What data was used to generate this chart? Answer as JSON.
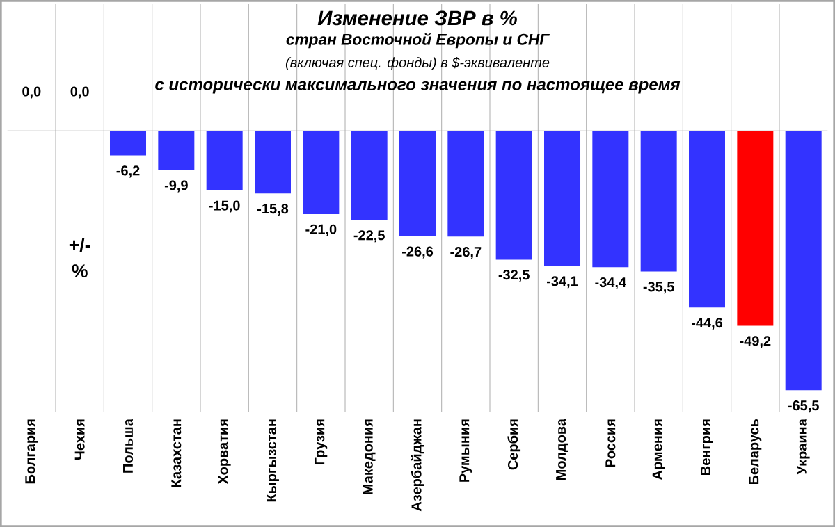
{
  "chart_data": {
    "type": "bar",
    "title": "Изменение ЗВР в %",
    "subtitle": "стран Восточной Европы и СНГ",
    "annotations": [
      "(включая спец. фонды) в $-эквиваленте",
      "с исторически  максимального  значения  по настоящее  время"
    ],
    "ylabel": "+/- %",
    "categories": [
      "Болгария",
      "Чехия",
      "Польша",
      "Казахстан",
      "Хорватия",
      "Кыргызстан",
      "Грузия",
      "Македония",
      "Азербайджан",
      "Румыния",
      "Сербия",
      "Молдова",
      "Россия",
      "Армения",
      "Венгрия",
      "Беларусь",
      "Украина"
    ],
    "values": [
      0.0,
      0.0,
      -6.2,
      -9.9,
      -15.0,
      -15.8,
      -21.0,
      -22.5,
      -26.6,
      -26.7,
      -32.5,
      -34.1,
      -34.4,
      -35.5,
      -44.6,
      -49.2,
      -65.5
    ],
    "value_labels": [
      "0,0",
      "0,0",
      "-6,2",
      "-9,9",
      "-15,0",
      "-15,8",
      "-21,0",
      "-22,5",
      "-26,6",
      "-26,7",
      "-32,5",
      "-34,1",
      "-34,4",
      "-35,5",
      "-44,6",
      "-49,2",
      "-65,5"
    ],
    "colors": [
      "#3333ff",
      "#3333ff",
      "#3333ff",
      "#3333ff",
      "#3333ff",
      "#3333ff",
      "#3333ff",
      "#3333ff",
      "#3333ff",
      "#3333ff",
      "#3333ff",
      "#3333ff",
      "#3333ff",
      "#3333ff",
      "#3333ff",
      "#ff0000",
      "#3333ff"
    ],
    "ylim": [
      -71,
      32
    ],
    "grid": "x",
    "tick_labels": "x"
  }
}
